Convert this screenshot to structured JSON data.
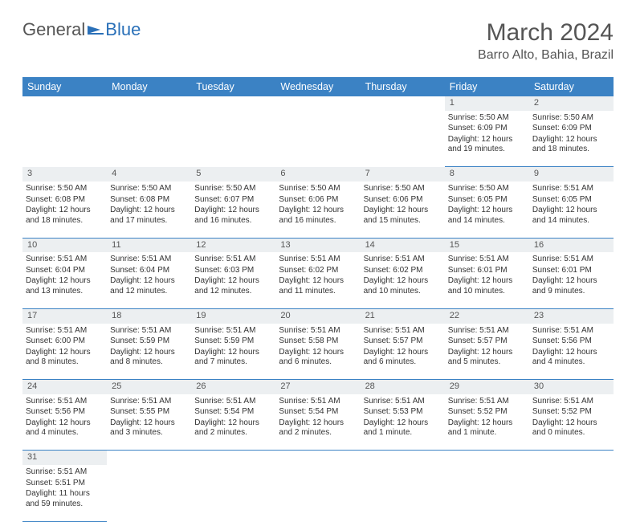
{
  "logo": {
    "general": "General",
    "blue": "Blue"
  },
  "title": "March 2024",
  "location": "Barro Alto, Bahia, Brazil",
  "colors": {
    "header_bg": "#3b82c4",
    "header_text": "#ffffff",
    "daynum_bg": "#eceff1",
    "border": "#3b82c4",
    "text": "#333333",
    "logo_blue": "#2a70b8",
    "logo_gray": "#555555"
  },
  "daysOfWeek": [
    "Sunday",
    "Monday",
    "Tuesday",
    "Wednesday",
    "Thursday",
    "Friday",
    "Saturday"
  ],
  "weeks": [
    [
      null,
      null,
      null,
      null,
      null,
      {
        "n": "1",
        "sunrise": "5:50 AM",
        "sunset": "6:09 PM",
        "daylight": "12 hours and 19 minutes."
      },
      {
        "n": "2",
        "sunrise": "5:50 AM",
        "sunset": "6:09 PM",
        "daylight": "12 hours and 18 minutes."
      }
    ],
    [
      {
        "n": "3",
        "sunrise": "5:50 AM",
        "sunset": "6:08 PM",
        "daylight": "12 hours and 18 minutes."
      },
      {
        "n": "4",
        "sunrise": "5:50 AM",
        "sunset": "6:08 PM",
        "daylight": "12 hours and 17 minutes."
      },
      {
        "n": "5",
        "sunrise": "5:50 AM",
        "sunset": "6:07 PM",
        "daylight": "12 hours and 16 minutes."
      },
      {
        "n": "6",
        "sunrise": "5:50 AM",
        "sunset": "6:06 PM",
        "daylight": "12 hours and 16 minutes."
      },
      {
        "n": "7",
        "sunrise": "5:50 AM",
        "sunset": "6:06 PM",
        "daylight": "12 hours and 15 minutes."
      },
      {
        "n": "8",
        "sunrise": "5:50 AM",
        "sunset": "6:05 PM",
        "daylight": "12 hours and 14 minutes."
      },
      {
        "n": "9",
        "sunrise": "5:51 AM",
        "sunset": "6:05 PM",
        "daylight": "12 hours and 14 minutes."
      }
    ],
    [
      {
        "n": "10",
        "sunrise": "5:51 AM",
        "sunset": "6:04 PM",
        "daylight": "12 hours and 13 minutes."
      },
      {
        "n": "11",
        "sunrise": "5:51 AM",
        "sunset": "6:04 PM",
        "daylight": "12 hours and 12 minutes."
      },
      {
        "n": "12",
        "sunrise": "5:51 AM",
        "sunset": "6:03 PM",
        "daylight": "12 hours and 12 minutes."
      },
      {
        "n": "13",
        "sunrise": "5:51 AM",
        "sunset": "6:02 PM",
        "daylight": "12 hours and 11 minutes."
      },
      {
        "n": "14",
        "sunrise": "5:51 AM",
        "sunset": "6:02 PM",
        "daylight": "12 hours and 10 minutes."
      },
      {
        "n": "15",
        "sunrise": "5:51 AM",
        "sunset": "6:01 PM",
        "daylight": "12 hours and 10 minutes."
      },
      {
        "n": "16",
        "sunrise": "5:51 AM",
        "sunset": "6:01 PM",
        "daylight": "12 hours and 9 minutes."
      }
    ],
    [
      {
        "n": "17",
        "sunrise": "5:51 AM",
        "sunset": "6:00 PM",
        "daylight": "12 hours and 8 minutes."
      },
      {
        "n": "18",
        "sunrise": "5:51 AM",
        "sunset": "5:59 PM",
        "daylight": "12 hours and 8 minutes."
      },
      {
        "n": "19",
        "sunrise": "5:51 AM",
        "sunset": "5:59 PM",
        "daylight": "12 hours and 7 minutes."
      },
      {
        "n": "20",
        "sunrise": "5:51 AM",
        "sunset": "5:58 PM",
        "daylight": "12 hours and 6 minutes."
      },
      {
        "n": "21",
        "sunrise": "5:51 AM",
        "sunset": "5:57 PM",
        "daylight": "12 hours and 6 minutes."
      },
      {
        "n": "22",
        "sunrise": "5:51 AM",
        "sunset": "5:57 PM",
        "daylight": "12 hours and 5 minutes."
      },
      {
        "n": "23",
        "sunrise": "5:51 AM",
        "sunset": "5:56 PM",
        "daylight": "12 hours and 4 minutes."
      }
    ],
    [
      {
        "n": "24",
        "sunrise": "5:51 AM",
        "sunset": "5:56 PM",
        "daylight": "12 hours and 4 minutes."
      },
      {
        "n": "25",
        "sunrise": "5:51 AM",
        "sunset": "5:55 PM",
        "daylight": "12 hours and 3 minutes."
      },
      {
        "n": "26",
        "sunrise": "5:51 AM",
        "sunset": "5:54 PM",
        "daylight": "12 hours and 2 minutes."
      },
      {
        "n": "27",
        "sunrise": "5:51 AM",
        "sunset": "5:54 PM",
        "daylight": "12 hours and 2 minutes."
      },
      {
        "n": "28",
        "sunrise": "5:51 AM",
        "sunset": "5:53 PM",
        "daylight": "12 hours and 1 minute."
      },
      {
        "n": "29",
        "sunrise": "5:51 AM",
        "sunset": "5:52 PM",
        "daylight": "12 hours and 1 minute."
      },
      {
        "n": "30",
        "sunrise": "5:51 AM",
        "sunset": "5:52 PM",
        "daylight": "12 hours and 0 minutes."
      }
    ],
    [
      {
        "n": "31",
        "sunrise": "5:51 AM",
        "sunset": "5:51 PM",
        "daylight": "11 hours and 59 minutes."
      },
      null,
      null,
      null,
      null,
      null,
      null
    ]
  ],
  "labels": {
    "sunrise": "Sunrise: ",
    "sunset": "Sunset: ",
    "daylight": "Daylight: "
  }
}
